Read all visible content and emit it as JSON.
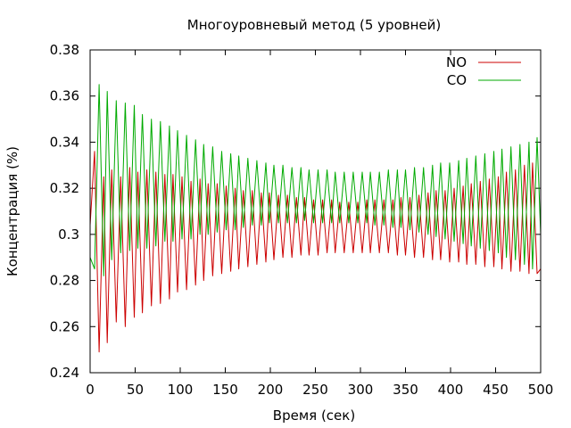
{
  "chart_data": {
    "type": "line",
    "title": "Многоуровневый метод (5 уровней)",
    "xlabel": "Время (сек)",
    "ylabel": "Концентрация (%)",
    "xlim": [
      0,
      500
    ],
    "ylim": [
      0.24,
      0.38
    ],
    "x_ticks": [
      "0",
      "50",
      "100",
      "150",
      "200",
      "250",
      "300",
      "350",
      "400",
      "450",
      "500"
    ],
    "y_ticks": [
      "0.24",
      "0.26",
      "0.28",
      "0.3",
      "0.32",
      "0.34",
      "0.36",
      "0.38"
    ],
    "grid": false,
    "legend": "top-right",
    "series": [
      {
        "name": "NO",
        "color": "#cc0000",
        "x": [
          0,
          5,
          10,
          15,
          19,
          24,
          29,
          34,
          39,
          44,
          49,
          53,
          58,
          63,
          68,
          73,
          78,
          83,
          88,
          92,
          97,
          102,
          107,
          112,
          117,
          122,
          126,
          131,
          136,
          141,
          146,
          151,
          156,
          161,
          165,
          170,
          175,
          180,
          185,
          190,
          195,
          199,
          204,
          209,
          214,
          219,
          224,
          229,
          234,
          238,
          243,
          248,
          253,
          258,
          263,
          268,
          272,
          277,
          282,
          287,
          292,
          297,
          302,
          307,
          311,
          316,
          321,
          326,
          331,
          336,
          341,
          345,
          350,
          355,
          360,
          365,
          370,
          375,
          380,
          384,
          389,
          394,
          399,
          404,
          409,
          414,
          418,
          423,
          428,
          433,
          438,
          443,
          448,
          453,
          457,
          462,
          467,
          472,
          477,
          482,
          487,
          491,
          496,
          500
        ],
        "values": [
          0.304,
          0.336,
          0.249,
          0.325,
          0.253,
          0.328,
          0.262,
          0.325,
          0.26,
          0.329,
          0.264,
          0.327,
          0.266,
          0.328,
          0.269,
          0.327,
          0.27,
          0.326,
          0.272,
          0.326,
          0.275,
          0.325,
          0.276,
          0.323,
          0.278,
          0.324,
          0.28,
          0.322,
          0.282,
          0.322,
          0.283,
          0.321,
          0.284,
          0.32,
          0.285,
          0.319,
          0.286,
          0.319,
          0.287,
          0.318,
          0.288,
          0.318,
          0.289,
          0.317,
          0.29,
          0.317,
          0.29,
          0.316,
          0.291,
          0.316,
          0.291,
          0.315,
          0.291,
          0.315,
          0.292,
          0.315,
          0.292,
          0.314,
          0.292,
          0.314,
          0.292,
          0.314,
          0.292,
          0.315,
          0.292,
          0.315,
          0.292,
          0.315,
          0.292,
          0.315,
          0.291,
          0.316,
          0.291,
          0.316,
          0.29,
          0.317,
          0.29,
          0.318,
          0.289,
          0.319,
          0.289,
          0.319,
          0.288,
          0.32,
          0.288,
          0.321,
          0.287,
          0.322,
          0.287,
          0.323,
          0.286,
          0.324,
          0.286,
          0.325,
          0.285,
          0.327,
          0.284,
          0.328,
          0.284,
          0.33,
          0.283,
          0.331,
          0.283,
          0.285
        ]
      },
      {
        "name": "CO",
        "color": "#00aa00",
        "x": [
          0,
          5,
          10,
          15,
          19,
          24,
          29,
          34,
          39,
          44,
          49,
          53,
          58,
          63,
          68,
          73,
          78,
          83,
          88,
          92,
          97,
          102,
          107,
          112,
          117,
          122,
          126,
          131,
          136,
          141,
          146,
          151,
          156,
          161,
          165,
          170,
          175,
          180,
          185,
          190,
          195,
          199,
          204,
          209,
          214,
          219,
          224,
          229,
          234,
          238,
          243,
          248,
          253,
          258,
          263,
          268,
          272,
          277,
          282,
          287,
          292,
          297,
          302,
          307,
          311,
          316,
          321,
          326,
          331,
          336,
          341,
          345,
          350,
          355,
          360,
          365,
          370,
          375,
          380,
          384,
          389,
          394,
          399,
          404,
          409,
          414,
          418,
          423,
          428,
          433,
          438,
          443,
          448,
          453,
          457,
          462,
          467,
          472,
          477,
          482,
          487,
          491,
          496,
          500
        ],
        "values": [
          0.29,
          0.285,
          0.365,
          0.282,
          0.362,
          0.289,
          0.358,
          0.292,
          0.357,
          0.293,
          0.356,
          0.294,
          0.352,
          0.294,
          0.35,
          0.295,
          0.349,
          0.297,
          0.347,
          0.297,
          0.345,
          0.298,
          0.343,
          0.298,
          0.341,
          0.3,
          0.339,
          0.3,
          0.338,
          0.301,
          0.336,
          0.302,
          0.335,
          0.302,
          0.334,
          0.303,
          0.333,
          0.304,
          0.332,
          0.304,
          0.331,
          0.305,
          0.33,
          0.305,
          0.33,
          0.305,
          0.329,
          0.305,
          0.329,
          0.306,
          0.328,
          0.305,
          0.328,
          0.305,
          0.328,
          0.305,
          0.327,
          0.305,
          0.327,
          0.305,
          0.327,
          0.305,
          0.327,
          0.305,
          0.327,
          0.304,
          0.327,
          0.304,
          0.328,
          0.303,
          0.328,
          0.303,
          0.328,
          0.302,
          0.329,
          0.301,
          0.329,
          0.3,
          0.33,
          0.299,
          0.331,
          0.298,
          0.331,
          0.297,
          0.332,
          0.296,
          0.333,
          0.295,
          0.334,
          0.294,
          0.335,
          0.293,
          0.336,
          0.292,
          0.337,
          0.29,
          0.338,
          0.289,
          0.339,
          0.287,
          0.34,
          0.285,
          0.342,
          0.3
        ]
      }
    ]
  }
}
